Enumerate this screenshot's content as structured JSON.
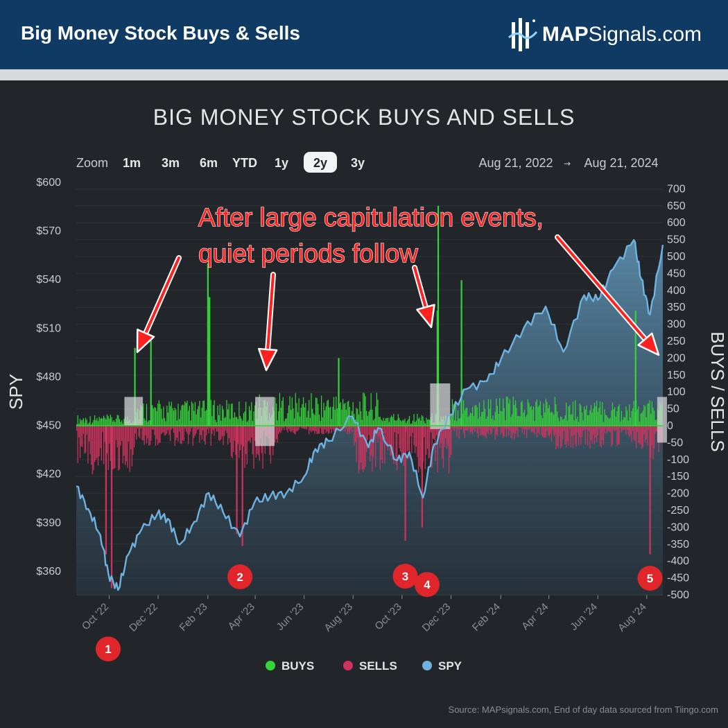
{
  "header": {
    "title": "Big Money Stock Buys & Sells",
    "brand_bold": "MAP",
    "brand_rest": "Signals.com"
  },
  "zoom": {
    "label": "Zoom",
    "options": [
      "1m",
      "3m",
      "6m",
      "YTD",
      "1y",
      "2y",
      "3y"
    ],
    "selected": "2y"
  },
  "date_range": {
    "start": "Aug 21, 2022",
    "arrow": "→",
    "end": "Aug 21, 2024"
  },
  "annotation": {
    "line1": "After large capitulation events,",
    "line2": "quiet periods follow"
  },
  "markers": [
    "1",
    "2",
    "3",
    "4",
    "5"
  ],
  "source": "Source: MAPsignals.com, End of day data sourced from Tiingo.com",
  "colors": {
    "buys": "#35d43b",
    "sells": "#d0345e",
    "spy": "#6fb3e2",
    "marker": "#e0262a",
    "annotation": "#ff2020"
  },
  "chart_data": {
    "type": "bar",
    "title": "BIG MONEY STOCK BUYS AND SELLS",
    "left_axis": {
      "label": "SPY",
      "ticks": [
        "$600",
        "$570",
        "$540",
        "$510",
        "$480",
        "$450",
        "$420",
        "$390",
        "$360"
      ],
      "range": [
        345,
        600
      ]
    },
    "right_axis": {
      "label": "BUYS / SELLS",
      "ticks": [
        "700",
        "650",
        "600",
        "550",
        "500",
        "450",
        "400",
        "350",
        "300",
        "250",
        "200",
        "150",
        "100",
        "50",
        "0",
        "-50",
        "-100",
        "-150",
        "-200",
        "-250",
        "-300",
        "-350",
        "-400",
        "-450",
        "-500"
      ],
      "range": [
        -500,
        700
      ]
    },
    "x_axis": {
      "range": [
        "2022-08-21",
        "2024-08-21"
      ],
      "ticks": [
        {
          "label": "Oct '22",
          "date": "2022-10-01"
        },
        {
          "label": "Dec '22",
          "date": "2022-12-01"
        },
        {
          "label": "Feb '23",
          "date": "2023-02-01"
        },
        {
          "label": "Apr '23",
          "date": "2023-04-01"
        },
        {
          "label": "Jun '23",
          "date": "2023-06-01"
        },
        {
          "label": "Aug '23",
          "date": "2023-08-01"
        },
        {
          "label": "Oct '23",
          "date": "2023-10-01"
        },
        {
          "label": "Dec '23",
          "date": "2023-12-01"
        },
        {
          "label": "Feb '24",
          "date": "2024-02-01"
        },
        {
          "label": "Apr '24",
          "date": "2024-04-01"
        },
        {
          "label": "Jun '24",
          "date": "2024-06-01"
        },
        {
          "label": "Aug '24",
          "date": "2024-08-01"
        }
      ]
    },
    "legend": {
      "position": "bottom-center",
      "items": [
        {
          "name": "BUYS",
          "color": "#35d43b"
        },
        {
          "name": "SELLS",
          "color": "#d0345e"
        },
        {
          "name": "SPY",
          "color": "#6fb3e2"
        }
      ]
    },
    "spy_series": [
      {
        "date": "2022-08-21",
        "value": 412
      },
      {
        "date": "2022-09-05",
        "value": 398
      },
      {
        "date": "2022-09-20",
        "value": 382
      },
      {
        "date": "2022-09-30",
        "value": 358
      },
      {
        "date": "2022-10-12",
        "value": 348
      },
      {
        "date": "2022-10-25",
        "value": 370
      },
      {
        "date": "2022-11-10",
        "value": 385
      },
      {
        "date": "2022-11-30",
        "value": 395
      },
      {
        "date": "2022-12-13",
        "value": 392
      },
      {
        "date": "2022-12-28",
        "value": 376
      },
      {
        "date": "2023-01-15",
        "value": 390
      },
      {
        "date": "2023-02-02",
        "value": 408
      },
      {
        "date": "2023-02-20",
        "value": 396
      },
      {
        "date": "2023-03-13",
        "value": 381
      },
      {
        "date": "2023-03-31",
        "value": 402
      },
      {
        "date": "2023-04-20",
        "value": 406
      },
      {
        "date": "2023-05-10",
        "value": 408
      },
      {
        "date": "2023-06-01",
        "value": 418
      },
      {
        "date": "2023-06-15",
        "value": 435
      },
      {
        "date": "2023-07-01",
        "value": 440
      },
      {
        "date": "2023-07-31",
        "value": 455
      },
      {
        "date": "2023-08-20",
        "value": 436
      },
      {
        "date": "2023-09-01",
        "value": 448
      },
      {
        "date": "2023-09-25",
        "value": 428
      },
      {
        "date": "2023-10-10",
        "value": 433
      },
      {
        "date": "2023-10-27",
        "value": 405
      },
      {
        "date": "2023-11-10",
        "value": 438
      },
      {
        "date": "2023-11-30",
        "value": 456
      },
      {
        "date": "2023-12-20",
        "value": 472
      },
      {
        "date": "2024-01-15",
        "value": 477
      },
      {
        "date": "2024-02-01",
        "value": 490
      },
      {
        "date": "2024-03-01",
        "value": 510
      },
      {
        "date": "2024-03-28",
        "value": 523
      },
      {
        "date": "2024-04-19",
        "value": 495
      },
      {
        "date": "2024-05-15",
        "value": 530
      },
      {
        "date": "2024-06-01",
        "value": 527
      },
      {
        "date": "2024-06-20",
        "value": 546
      },
      {
        "date": "2024-07-16",
        "value": 564
      },
      {
        "date": "2024-07-25",
        "value": 540
      },
      {
        "date": "2024-08-05",
        "value": 518
      },
      {
        "date": "2024-08-21",
        "value": 561
      }
    ],
    "buys_peaks": [
      {
        "date": "2022-11-02",
        "value": 230
      },
      {
        "date": "2022-11-22",
        "value": 255
      },
      {
        "date": "2023-02-01",
        "value": 480
      },
      {
        "date": "2023-02-03",
        "value": 380
      },
      {
        "date": "2023-07-14",
        "value": 200
      },
      {
        "date": "2023-11-14",
        "value": 340
      },
      {
        "date": "2023-11-15",
        "value": 650
      },
      {
        "date": "2023-12-14",
        "value": 430
      },
      {
        "date": "2024-07-18",
        "value": 340
      }
    ],
    "sells_troughs": [
      {
        "date": "2022-09-27",
        "value": -380
      },
      {
        "date": "2022-10-04",
        "value": -480
      },
      {
        "date": "2023-03-09",
        "value": -320
      },
      {
        "date": "2023-03-16",
        "value": -355
      },
      {
        "date": "2023-10-05",
        "value": -340
      },
      {
        "date": "2023-10-26",
        "value": -300
      },
      {
        "date": "2024-08-05",
        "value": -380
      }
    ],
    "highlight_boxes": [
      {
        "start": "2022-10-20",
        "end": "2022-11-12",
        "top": 85,
        "bottom": 0
      },
      {
        "start": "2023-04-01",
        "end": "2023-04-25",
        "top": 85,
        "bottom": -60
      },
      {
        "start": "2023-11-05",
        "end": "2023-11-30",
        "top": 125,
        "bottom": -10
      },
      {
        "start": "2024-08-14",
        "end": "2024-08-28",
        "top": 85,
        "bottom": -50
      }
    ],
    "marker_dates": [
      {
        "label": "1",
        "date": "2022-10-11"
      },
      {
        "label": "2",
        "date": "2023-03-13"
      },
      {
        "label": "3",
        "date": "2023-10-05"
      },
      {
        "label": "4",
        "date": "2023-10-27"
      },
      {
        "label": "5",
        "date": "2024-08-05"
      }
    ]
  }
}
